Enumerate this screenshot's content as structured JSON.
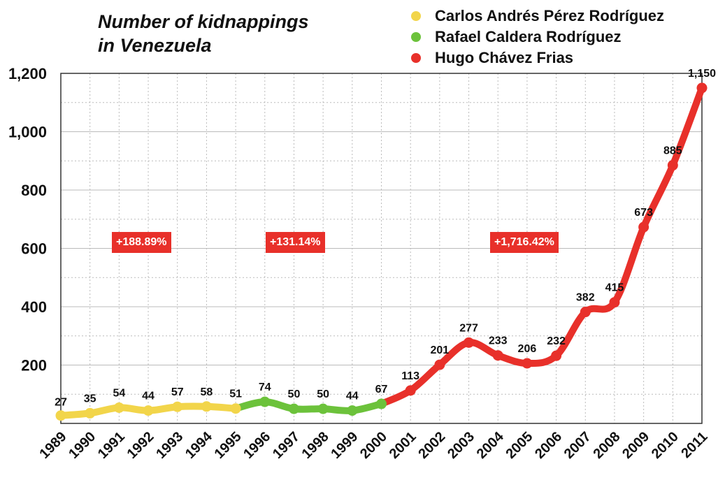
{
  "chart_data": {
    "type": "line",
    "title_line1": "Number of kidnappings",
    "title_line2": "in Venezuela",
    "categories": [
      "1989",
      "1990",
      "1991",
      "1992",
      "1993",
      "1994",
      "1995",
      "1996",
      "1997",
      "1998",
      "1999",
      "2000",
      "2001",
      "2002",
      "2003",
      "2004",
      "2005",
      "2006",
      "2007",
      "2008",
      "2009",
      "2010",
      "2011"
    ],
    "values": [
      27,
      35,
      54,
      44,
      57,
      58,
      51,
      74,
      50,
      50,
      44,
      67,
      113,
      201,
      277,
      233,
      206,
      232,
      382,
      415,
      673,
      885,
      1150
    ],
    "value_labels": [
      "27",
      "35",
      "54",
      "44",
      "57",
      "58",
      "51",
      "74",
      "50",
      "50",
      "44",
      "67",
      "113",
      "201",
      "277",
      "233",
      "206",
      "232",
      "382",
      "415",
      "673",
      "885",
      "1,150"
    ],
    "ylim": [
      0,
      1200
    ],
    "yticks": [
      200,
      400,
      600,
      800,
      1000,
      1200
    ],
    "ytick_labels": [
      "200",
      "400",
      "600",
      "800",
      "1,000",
      "1,200"
    ],
    "grid": true,
    "xlabel": "",
    "ylabel": "",
    "legend_position": "top-right",
    "series": [
      {
        "name": "Carlos Andrés Pérez Rodríguez",
        "color": "#f2d54a",
        "start_index": 0,
        "end_index": 6
      },
      {
        "name": "Rafael Caldera Rodríguez",
        "color": "#6cc23b",
        "start_index": 6,
        "end_index": 11
      },
      {
        "name": "Hugo Chávez Frias",
        "color": "#e8302a",
        "start_index": 11,
        "end_index": 22
      }
    ],
    "annotations": [
      {
        "text": "+188.89%",
        "color": "#e8302a"
      },
      {
        "text": "+131.14%",
        "color": "#e8302a"
      },
      {
        "text": "+1,716.42%",
        "color": "#e8302a"
      }
    ]
  }
}
